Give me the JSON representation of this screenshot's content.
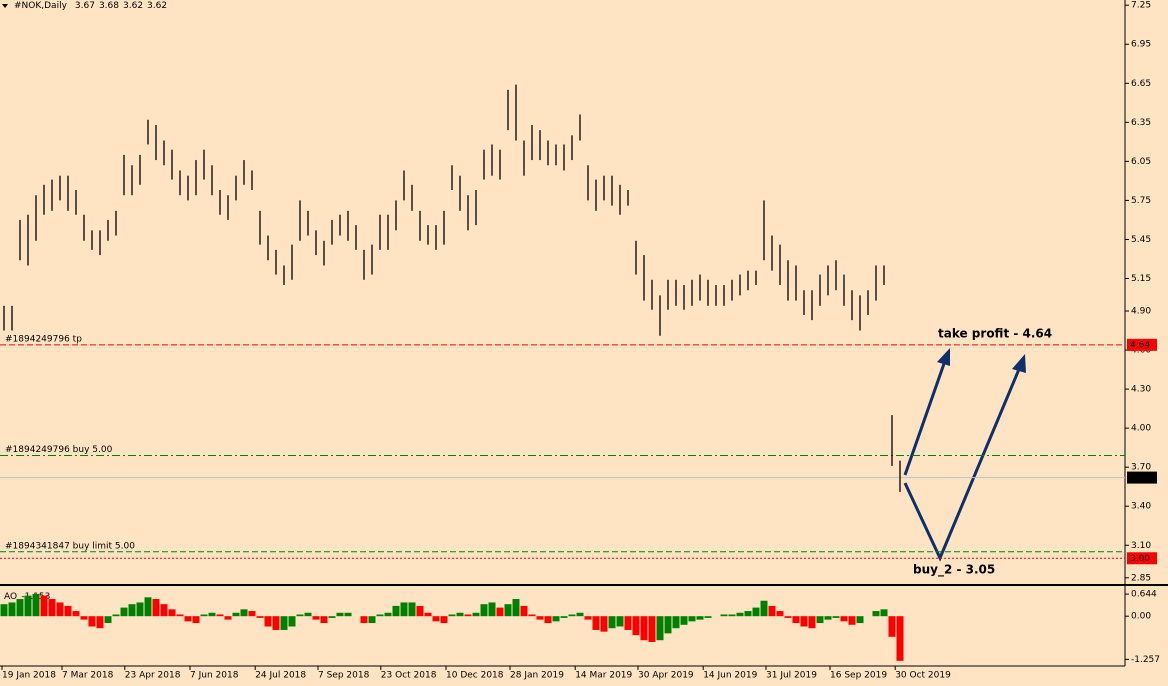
{
  "chart_data": {
    "type": "ohlc",
    "title": "#NOK,Daily",
    "header_values": [
      3.67,
      3.68,
      3.62,
      3.62
    ],
    "color": "#000000",
    "background": "#ffe4c4",
    "xlim": [
      -0.5,
      140.125
    ],
    "xticks": [
      {
        "value": -0.25,
        "label": "19 Jan 2018"
      },
      {
        "value": 7.25,
        "label": "7 Mar 2018"
      },
      {
        "value": 15.1,
        "label": "23 Apr 2018"
      },
      {
        "value": 23.25,
        "label": "7 Jun 2018"
      },
      {
        "value": 31.4,
        "label": "24 Jul 2018"
      },
      {
        "value": 39.25,
        "label": "7 Sep 2018"
      },
      {
        "value": 47.1,
        "label": "23 Oct 2018"
      },
      {
        "value": 55.25,
        "label": "10 Dec 2018"
      },
      {
        "value": 63.25,
        "label": "28 Jan 2019"
      },
      {
        "value": 71.4,
        "label": "14 Mar 2019"
      },
      {
        "value": 79.25,
        "label": "30 Apr 2019"
      },
      {
        "value": 87.4,
        "label": "14 Jun 2019"
      },
      {
        "value": 95.25,
        "label": "31 Jul 2019"
      },
      {
        "value": 103.25,
        "label": "16 Sep 2019"
      },
      {
        "value": 111.4,
        "label": "30 Oct 2019"
      }
    ],
    "high": [
      4.94,
      4.94,
      5.6,
      5.64,
      5.79,
      5.87,
      5.91,
      5.94,
      5.94,
      5.83,
      5.64,
      5.52,
      5.52,
      5.6,
      5.67,
      6.1,
      6.02,
      6.1,
      6.37,
      6.33,
      6.21,
      6.14,
      5.98,
      5.94,
      6.06,
      6.14,
      6.02,
      5.83,
      5.79,
      5.94,
      6.06,
      5.98,
      5.67,
      5.48,
      5.37,
      5.25,
      5.41,
      5.75,
      5.67,
      5.52,
      5.44,
      5.6,
      5.64,
      5.67,
      5.56,
      5.37,
      5.41,
      5.64,
      5.64,
      5.75,
      5.98,
      5.87,
      5.67,
      5.56,
      5.56,
      5.67,
      6.02,
      5.94,
      5.79,
      5.83,
      6.14,
      6.18,
      6.14,
      6.6,
      6.64,
      6.21,
      6.33,
      6.29,
      6.21,
      6.18,
      6.18,
      6.25,
      6.41,
      6.02,
      5.91,
      5.94,
      5.94,
      5.87,
      5.83,
      5.44,
      5.33,
      5.14,
      5.02,
      5.14,
      5.14,
      5.1,
      5.14,
      5.18,
      5.14,
      5.1,
      5.1,
      5.14,
      5.18,
      5.21,
      5.21,
      5.75,
      5.48,
      5.41,
      5.29,
      5.25,
      5.06,
      5.06,
      5.18,
      5.25,
      5.29,
      5.18,
      5.06,
      5.02,
      5.06,
      5.25,
      5.25,
      4.1,
      3.75
    ],
    "low": [
      4.75,
      4.75,
      5.29,
      5.25,
      5.44,
      5.64,
      5.67,
      5.75,
      5.67,
      5.64,
      5.44,
      5.37,
      5.33,
      5.44,
      5.48,
      5.79,
      5.79,
      5.87,
      6.18,
      6.06,
      6.02,
      5.91,
      5.79,
      5.75,
      5.79,
      5.91,
      5.79,
      5.64,
      5.6,
      5.75,
      5.87,
      5.83,
      5.41,
      5.29,
      5.18,
      5.1,
      5.14,
      5.44,
      5.48,
      5.33,
      5.25,
      5.41,
      5.48,
      5.44,
      5.37,
      5.14,
      5.18,
      5.37,
      5.37,
      5.52,
      5.75,
      5.67,
      5.44,
      5.41,
      5.37,
      5.41,
      5.83,
      5.67,
      5.52,
      5.56,
      5.91,
      5.94,
      5.91,
      6.29,
      6.21,
      5.94,
      6.06,
      6.06,
      6.02,
      6.02,
      5.98,
      6.06,
      6.21,
      5.75,
      5.67,
      5.75,
      5.71,
      5.64,
      5.71,
      5.18,
      4.98,
      4.91,
      4.71,
      4.91,
      4.94,
      4.91,
      4.94,
      4.98,
      4.94,
      4.94,
      4.94,
      4.98,
      5.02,
      5.06,
      5.1,
      5.29,
      5.21,
      5.1,
      4.98,
      4.98,
      4.87,
      4.83,
      4.94,
      5.02,
      5.06,
      4.94,
      4.83,
      4.75,
      4.87,
      4.98,
      5.1,
      3.71,
      3.51
    ],
    "ylim": [
      2.81,
      7.29
    ],
    "yticks": [
      7.25,
      6.95,
      6.65,
      6.35,
      6.05,
      5.75,
      5.45,
      5.15,
      {
        "value": 4.9,
        "label": "4.90"
      },
      {
        "value": 4.6,
        "label": "4.60"
      },
      {
        "value": 4.3,
        "label": "4.30"
      },
      {
        "value": 4,
        "label": "4.00"
      },
      {
        "value": 3.7,
        "label": "3.70"
      },
      {
        "value": 3.4,
        "label": "3.40"
      },
      {
        "value": 3.1,
        "label": "3.10"
      },
      2.85
    ],
    "levels": [
      {
        "name": "#1894249796 tp",
        "value": 4.64,
        "color": "#ff0000",
        "style": "dashed",
        "tag": true,
        "tag_color": "#ff0000"
      },
      {
        "name": "#1894249796 buy 5.00",
        "value": 3.79,
        "color": "#008000",
        "style": "dashdot"
      },
      {
        "value": 3.62,
        "color": "#c0c0c0",
        "style": "solid",
        "tag": true,
        "tag_color": "#000000"
      },
      {
        "name": "#1894341847 buy limit 5.00",
        "value": 3.05,
        "color": "#008000",
        "style": "dashed"
      },
      {
        "value": 3,
        "value_label": "3.00",
        "color": "#ff0000",
        "style": "dotted",
        "tag": true,
        "tag_color": "#ff0000"
      }
    ],
    "annotations": [
      "take profit - 4.64",
      "buy_2 - 3.05"
    ],
    "annotation_color": "#3a3ad0",
    "arrow_color": "#0f2f6b",
    "indicator": {
      "name": "AO",
      "value": -1.153,
      "up_color": "#008000",
      "down_color": "#ff0000",
      "ylim": [
        -1.45,
        0.85
      ],
      "yticks": [
        0.644,
        {
          "value": 0,
          "label": "0.00"
        },
        -1.257
      ],
      "values": [
        0.35,
        0.4,
        0.5,
        0.6,
        0.65,
        0.6,
        0.5,
        0.4,
        0.3,
        0.15,
        -0.1,
        -0.3,
        -0.35,
        -0.2,
        0.05,
        0.25,
        0.35,
        0.4,
        0.55,
        0.5,
        0.35,
        0.2,
        0.05,
        -0.15,
        -0.2,
        0.05,
        0.1,
        0.05,
        -0.1,
        0.1,
        0.2,
        0.15,
        -0.05,
        -0.3,
        -0.4,
        -0.4,
        -0.3,
        0.05,
        0.1,
        -0.1,
        -0.2,
        -0.05,
        0.1,
        0.1,
        0,
        -0.2,
        -0.2,
        0.05,
        0.1,
        0.3,
        0.4,
        0.4,
        0.3,
        0.1,
        -0.15,
        -0.2,
        0.05,
        0.1,
        0.05,
        0.1,
        0.35,
        0.4,
        0.25,
        0.35,
        0.5,
        0.3,
        0.05,
        -0.1,
        -0.2,
        -0.15,
        -0.05,
        0.05,
        0.1,
        -0.1,
        -0.4,
        -0.45,
        -0.35,
        -0.3,
        -0.4,
        -0.55,
        -0.7,
        -0.75,
        -0.7,
        -0.5,
        -0.35,
        -0.25,
        -0.15,
        -0.1,
        -0.05,
        0,
        0.05,
        0.05,
        0.1,
        0.15,
        0.25,
        0.45,
        0.3,
        0.15,
        -0.05,
        -0.2,
        -0.3,
        -0.35,
        -0.2,
        -0.1,
        -0.05,
        -0.15,
        -0.25,
        -0.2,
        0,
        0.15,
        0.2,
        -0.6,
        -1.3
      ]
    }
  }
}
